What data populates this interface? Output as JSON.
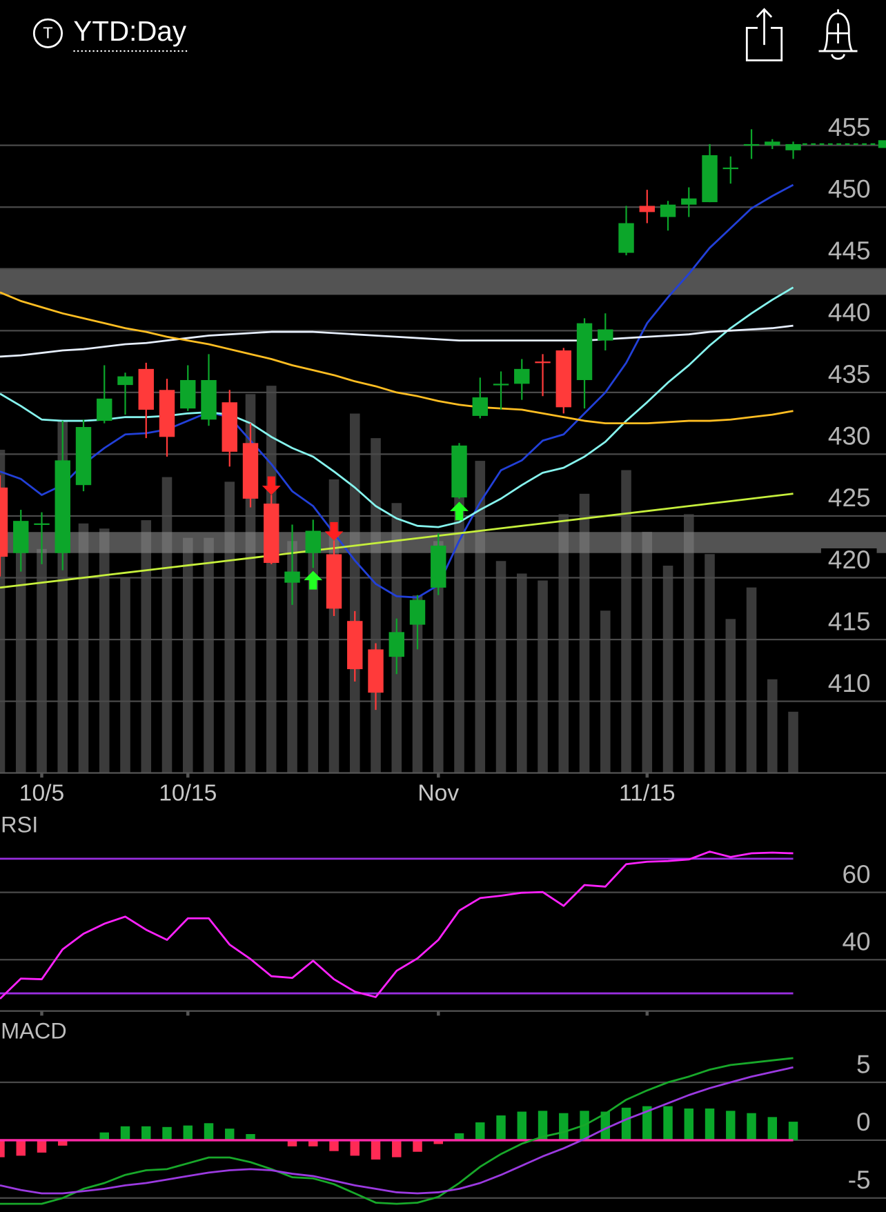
{
  "header": {
    "badge": "T",
    "title": "YTD:Day"
  },
  "chart_data": [
    {
      "type": "candlestick",
      "categories": [
        null,
        null,
        "10/5",
        null,
        null,
        null,
        null,
        null,
        null,
        "10/15",
        null,
        null,
        null,
        null,
        null,
        null,
        null,
        null,
        null,
        null,
        null,
        "Nov",
        null,
        null,
        null,
        null,
        null,
        null,
        null,
        null,
        null,
        "11/15",
        null,
        null,
        null,
        null,
        null,
        null,
        null
      ],
      "open": [
        427.3,
        422.0,
        424.3,
        422.0,
        427.5,
        432.7,
        435.6,
        436.9,
        435.2,
        433.7,
        432.8,
        434.2,
        430.9,
        426.0,
        419.6,
        422.0,
        421.9,
        416.5,
        414.2,
        413.6,
        416.2,
        419.2,
        426.5,
        433.1,
        435.6,
        435.7,
        437.5,
        438.4,
        436.0,
        439.2,
        446.3,
        450.1,
        449.2,
        450.2,
        450.4,
        453.1,
        455.0,
        455.0,
        454.6
      ],
      "high": [
        428.3,
        425.5,
        425.3,
        432.7,
        432.8,
        437.2,
        436.6,
        437.4,
        436.1,
        437.2,
        438.1,
        435.2,
        432.5,
        426.7,
        424.3,
        424.7,
        423.0,
        417.3,
        414.7,
        416.7,
        418.6,
        423.6,
        430.9,
        436.2,
        436.7,
        437.7,
        438.1,
        438.6,
        441.0,
        441.4,
        450.1,
        451.4,
        450.5,
        451.6,
        455.1,
        454.1,
        456.3,
        455.5,
        455.3
      ],
      "low": [
        420.1,
        420.5,
        421.1,
        420.6,
        427.0,
        432.5,
        433.2,
        431.3,
        429.8,
        433.5,
        432.3,
        429.0,
        425.7,
        421.1,
        417.8,
        420.8,
        416.9,
        411.6,
        409.3,
        412.2,
        414.2,
        418.6,
        426.4,
        432.9,
        433.6,
        434.4,
        434.7,
        433.3,
        433.7,
        438.4,
        446.1,
        448.7,
        448.1,
        449.2,
        450.4,
        451.9,
        453.9,
        454.7,
        453.9
      ],
      "close": [
        421.7,
        424.6,
        424.4,
        429.5,
        432.2,
        434.5,
        436.3,
        433.6,
        431.4,
        436.0,
        436.0,
        430.2,
        426.4,
        421.2,
        420.5,
        423.8,
        417.5,
        412.6,
        410.7,
        415.6,
        418.2,
        422.6,
        430.7,
        434.6,
        435.7,
        436.9,
        437.4,
        433.8,
        440.6,
        440.1,
        448.7,
        449.6,
        450.2,
        450.7,
        454.2,
        453.2,
        455.1,
        455.3,
        455.1
      ],
      "up_color": "#0ca62a",
      "down_color": "#ff3a3a",
      "ylim": [
        404.2,
        458.0
      ],
      "yticks": [
        410,
        415,
        420,
        425,
        430,
        435,
        440,
        445,
        450,
        455
      ],
      "grid": true,
      "overlays": [
        {
          "color": "#2240d8",
          "values": [
            428.6,
            428.0,
            426.7,
            427.5,
            429.2,
            430.5,
            431.6,
            431.7,
            432.0,
            432.7,
            433.4,
            433.0,
            431.1,
            429.2,
            427.0,
            425.8,
            423.6,
            421.4,
            419.5,
            418.5,
            418.4,
            419.4,
            423.0,
            426.1,
            428.7,
            429.5,
            431.1,
            431.6,
            433.3,
            435.0,
            437.4,
            440.6,
            442.7,
            444.6,
            446.7,
            448.3,
            449.9,
            450.9,
            451.8
          ]
        },
        {
          "color": "#86f4ee",
          "values": [
            434.9,
            433.9,
            432.8,
            432.7,
            432.7,
            432.8,
            433.0,
            433.0,
            433.1,
            433.3,
            433.4,
            433.2,
            432.5,
            431.4,
            430.5,
            429.8,
            428.6,
            427.3,
            425.8,
            424.8,
            424.2,
            424.1,
            424.5,
            425.5,
            426.4,
            427.5,
            428.5,
            428.9,
            429.8,
            431.0,
            432.7,
            434.2,
            435.8,
            437.2,
            438.8,
            440.2,
            441.4,
            442.5,
            443.5
          ]
        },
        {
          "color": "#e6eefc",
          "values": [
            437.9,
            438.0,
            438.2,
            438.4,
            438.5,
            438.7,
            438.9,
            439.0,
            439.2,
            439.4,
            439.6,
            439.7,
            439.8,
            439.9,
            439.9,
            439.9,
            439.8,
            439.7,
            439.6,
            439.5,
            439.4,
            439.3,
            439.2,
            439.2,
            439.2,
            439.2,
            439.2,
            439.2,
            439.2,
            439.3,
            439.4,
            439.5,
            439.6,
            439.7,
            439.9,
            440.0,
            440.1,
            440.2,
            440.4
          ]
        },
        {
          "color": "#ffbe22",
          "values": [
            443.1,
            442.4,
            441.9,
            441.4,
            441.0,
            440.6,
            440.2,
            439.9,
            439.5,
            439.2,
            438.9,
            438.5,
            438.1,
            437.7,
            437.2,
            436.8,
            436.4,
            435.9,
            435.5,
            435.0,
            434.7,
            434.3,
            434.0,
            433.8,
            433.7,
            433.6,
            433.3,
            433.0,
            432.7,
            432.5,
            432.5,
            432.5,
            432.6,
            432.7,
            432.7,
            432.8,
            433.0,
            433.2,
            433.5
          ]
        },
        {
          "color": "#c6ef3c",
          "values": [
            419.2,
            419.4,
            419.6,
            419.8,
            420.0,
            420.2,
            420.4,
            420.6,
            420.8,
            421.0,
            421.2,
            421.4,
            421.6,
            421.8,
            422.0,
            422.2,
            422.4,
            422.6,
            422.8,
            423.0,
            423.2,
            423.4,
            423.6,
            423.8,
            424.0,
            424.2,
            424.4,
            424.6,
            424.8,
            425.0,
            425.2,
            425.4,
            425.6,
            425.8,
            426.0,
            426.2,
            426.4,
            426.6,
            426.8
          ]
        }
      ],
      "volume": {
        "color": "#3b3b3b",
        "ylim": [
          0,
          100
        ],
        "values": [
          69.7,
          50.0,
          48.3,
          75.8,
          53.8,
          52.7,
          42.0,
          54.5,
          63.8,
          50.7,
          50.7,
          62.8,
          81.7,
          83.5,
          50.0,
          51.7,
          63.3,
          77.5,
          72.2,
          58.2,
          38.3,
          50.0,
          70.5,
          67.3,
          45.7,
          43.0,
          41.5,
          55.8,
          60.2,
          35.0,
          65.3,
          52.0,
          44.7,
          55.8,
          47.2,
          33.2,
          40.0,
          20.2,
          13.2
        ]
      },
      "zones": [
        [
          442.9,
          445.0
        ],
        [
          422.0,
          423.7
        ]
      ],
      "zone_color": "#8a8a8a",
      "signals": [
        {
          "index": 13,
          "direction": "down",
          "color": "#ff2020"
        },
        {
          "index": 15,
          "direction": "up",
          "color": "#22ff22"
        },
        {
          "index": 16,
          "direction": "down",
          "color": "#ff2020"
        },
        {
          "index": 22,
          "direction": "up",
          "color": "#22ff22"
        }
      ]
    },
    {
      "type": "line",
      "title": "RSI",
      "series": [
        {
          "color": "#ff22ff",
          "values": [
            28.4,
            34.4,
            34.2,
            43.1,
            47.7,
            50.7,
            52.8,
            48.9,
            45.9,
            52.3,
            52.3,
            44.5,
            40.2,
            35.1,
            34.6,
            39.7,
            34.2,
            30.5,
            28.9,
            36.7,
            40.4,
            45.9,
            54.6,
            58.3,
            59.0,
            59.9,
            60.1,
            56.0,
            62.2,
            61.7,
            68.4,
            69.1,
            69.3,
            69.8,
            72.1,
            70.5,
            71.6,
            71.8,
            71.6
          ]
        }
      ],
      "levels": [
        30,
        70
      ],
      "level_color": "#9a2ee0",
      "ylim": [
        25,
        84
      ],
      "yticks": [
        40,
        60
      ],
      "grid": true
    },
    {
      "type": "macd",
      "title": "MACD",
      "histogram": [
        -1.47,
        -1.34,
        -1.07,
        -0.47,
        0,
        0.67,
        1.2,
        1.2,
        1.14,
        1.27,
        1.47,
        1.0,
        0.53,
        0,
        -0.53,
        -0.53,
        -0.94,
        -1.34,
        -1.67,
        -1.47,
        -1.0,
        -0.33,
        0.6,
        1.54,
        2.14,
        2.47,
        2.54,
        2.34,
        2.54,
        2.47,
        2.81,
        2.94,
        2.94,
        2.74,
        2.74,
        2.54,
        2.34,
        2.0,
        1.6
      ],
      "up_color": "#0aa82a",
      "down_color": "#ff2a55",
      "zero_line_color": "#ff2aa8",
      "series": [
        {
          "color": "#18a82a",
          "values": [
            -5.5,
            -5.5,
            -5.5,
            -5.0,
            -4.2,
            -3.7,
            -3.0,
            -2.6,
            -2.5,
            -2.0,
            -1.5,
            -1.5,
            -1.9,
            -2.5,
            -3.2,
            -3.3,
            -3.8,
            -4.6,
            -5.4,
            -5.5,
            -5.4,
            -4.9,
            -3.7,
            -2.3,
            -1.2,
            -0.3,
            0.3,
            0.7,
            1.3,
            2.3,
            3.5,
            4.3,
            5.0,
            5.5,
            6.1,
            6.5,
            6.7,
            6.9,
            7.1
          ]
        },
        {
          "color": "#9b3ae0",
          "values": [
            -3.9,
            -4.3,
            -4.6,
            -4.6,
            -4.4,
            -4.2,
            -3.9,
            -3.7,
            -3.4,
            -3.1,
            -2.8,
            -2.6,
            -2.5,
            -2.6,
            -2.9,
            -3.1,
            -3.5,
            -3.9,
            -4.2,
            -4.5,
            -4.6,
            -4.5,
            -4.2,
            -3.7,
            -3.0,
            -2.2,
            -1.4,
            -0.7,
            0.1,
            1.0,
            1.8,
            2.5,
            3.2,
            3.9,
            4.5,
            5.0,
            5.5,
            5.9,
            6.3
          ]
        }
      ],
      "ylim": [
        -6.2,
        10.5
      ],
      "yticks": [
        -5,
        0,
        5
      ],
      "grid": true
    }
  ]
}
